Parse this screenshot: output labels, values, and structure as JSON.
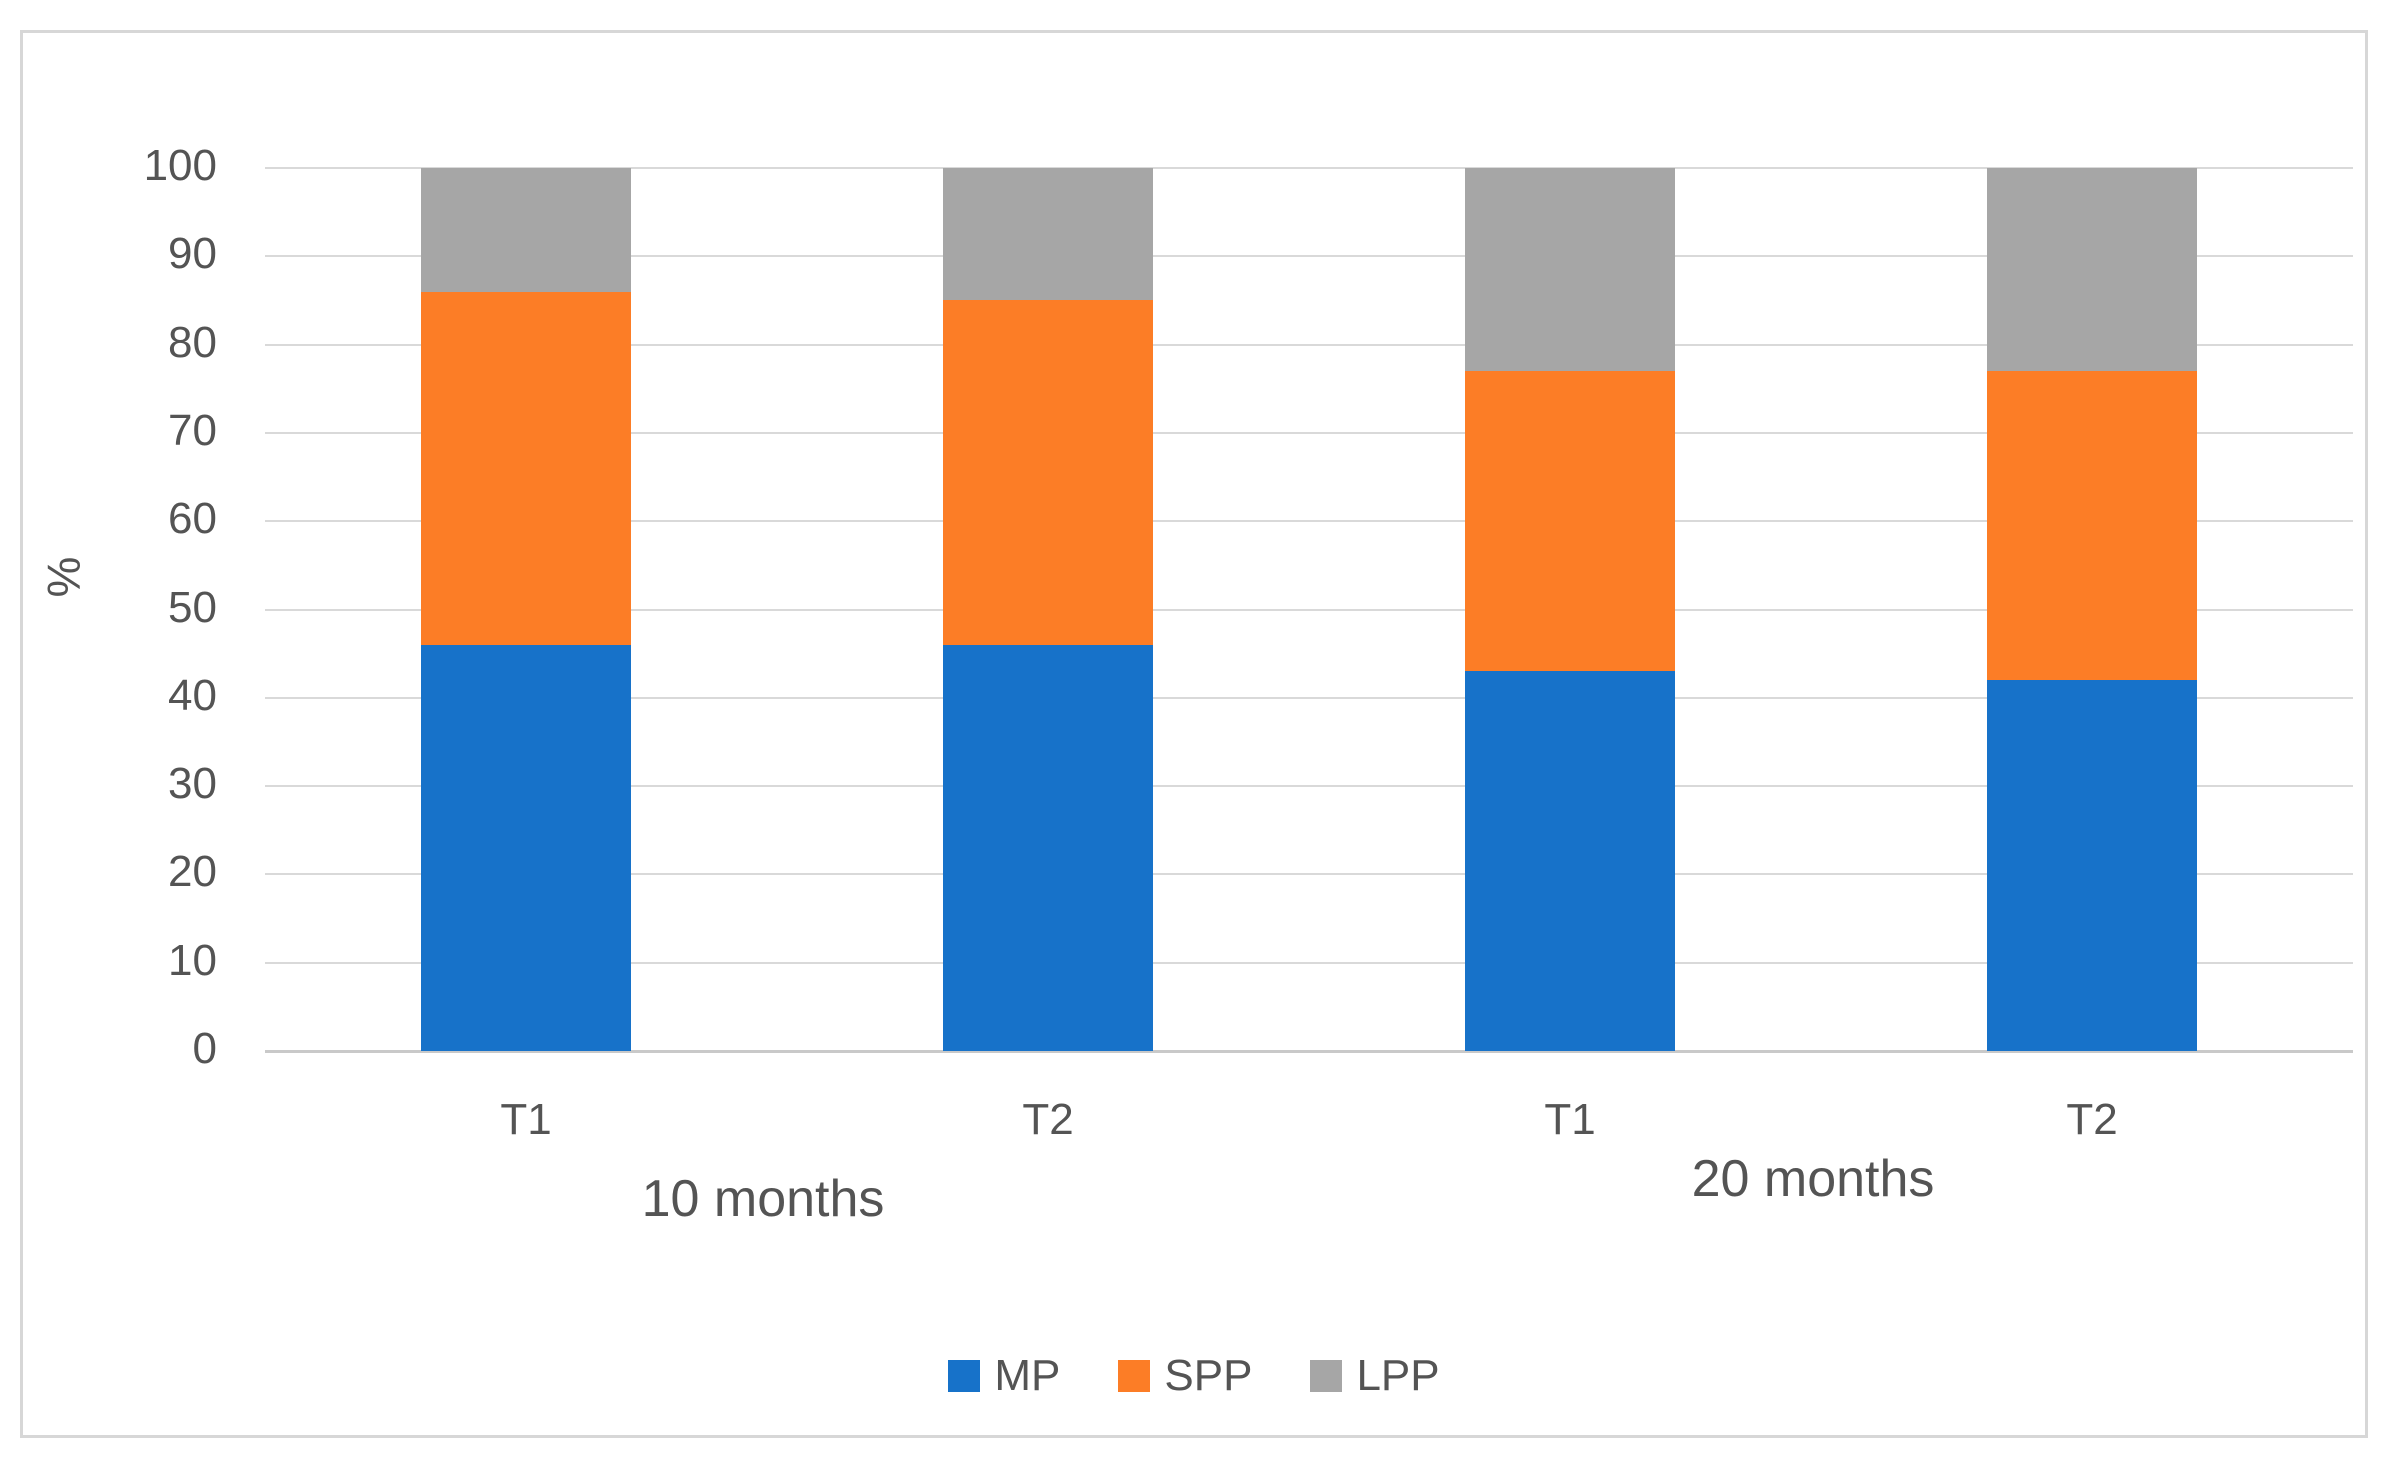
{
  "figure": {
    "background": "#FFFFFF",
    "panel_border_color": "#D7D7D7"
  },
  "chart_data": {
    "type": "bar",
    "stacked": true,
    "title": "",
    "xlabel": "",
    "ylabel": "%",
    "ylim": [
      0,
      100
    ],
    "yticks": [
      0,
      10,
      20,
      30,
      40,
      50,
      60,
      70,
      80,
      90,
      100
    ],
    "grid": true,
    "gridline_color": "#D9D9D9",
    "axis_line_color": "#C9C9C9",
    "text_color": "#545454",
    "categories": [
      "T1",
      "T2",
      "T1",
      "T2"
    ],
    "groups": [
      {
        "label": "10 months",
        "bar_indexes": [
          0,
          1
        ]
      },
      {
        "label": "20 months",
        "bar_indexes": [
          2,
          3
        ]
      }
    ],
    "series": [
      {
        "name": "MP",
        "color": "#1772C9",
        "values": [
          46,
          46,
          43,
          42
        ]
      },
      {
        "name": "SPP",
        "color": "#FC7D26",
        "values": [
          40,
          39,
          34,
          35
        ]
      },
      {
        "name": "LPP",
        "color": "#A6A6A6",
        "values": [
          14,
          15,
          23,
          23
        ]
      }
    ],
    "legend_position": "bottom"
  }
}
